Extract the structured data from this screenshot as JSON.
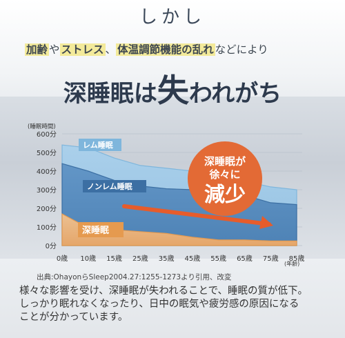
{
  "title": "しかし",
  "subtitle": {
    "part1": "加齢",
    "part2": "や",
    "part3": "ストレス",
    "part4": "、",
    "part5": "体温調節機能の乱れ",
    "part6": "などにより"
  },
  "headline": {
    "part1": "深睡眠は",
    "part2": "失",
    "part3": "われがち"
  },
  "badge": {
    "line1": "深睡眠が",
    "line2": "徐々に",
    "line3": "減少"
  },
  "source_note": "出典:OhayonらSleep2004.27:1255-1273より引用、改変",
  "body": [
    "様々な影響を受け、深睡眠が失われることで、睡眠の質が低下。",
    "しっかり眠れなくなったり、日中の眠気や疲労感の原因になる",
    "ことが分かっています。"
  ],
  "colors": {
    "rem": "#7fb6dc",
    "nonrem": "#3c6fa3",
    "deep": "#e59a4f",
    "arrow": "#e65c2b",
    "badge": "#e36a35"
  },
  "chart_data": {
    "type": "area",
    "ylabel": "(睡眠時間)",
    "xlabel": "(年齢)",
    "categories": [
      "0歳",
      "10歳",
      "15歳",
      "25歳",
      "35歳",
      "45歳",
      "55歳",
      "65歳",
      "75歳",
      "85歳"
    ],
    "yticks": [
      "0分",
      "100分",
      "200分",
      "300分",
      "400分",
      "500分",
      "600分"
    ],
    "ylim": [
      0,
      600
    ],
    "series": [
      {
        "name": "レム睡眠",
        "values": [
          540,
          525,
          470,
          430,
          415,
          400,
          360,
          345,
          315,
          300
        ]
      },
      {
        "name": "ノンレム睡眠",
        "values": [
          440,
          400,
          350,
          320,
          305,
          300,
          275,
          270,
          230,
          220
        ]
      },
      {
        "name": "深睡眠",
        "values": [
          170,
          95,
          85,
          75,
          65,
          45,
          30,
          30,
          25,
          25
        ]
      }
    ],
    "annotations": [
      "深睡眠が徐々に減少"
    ]
  }
}
